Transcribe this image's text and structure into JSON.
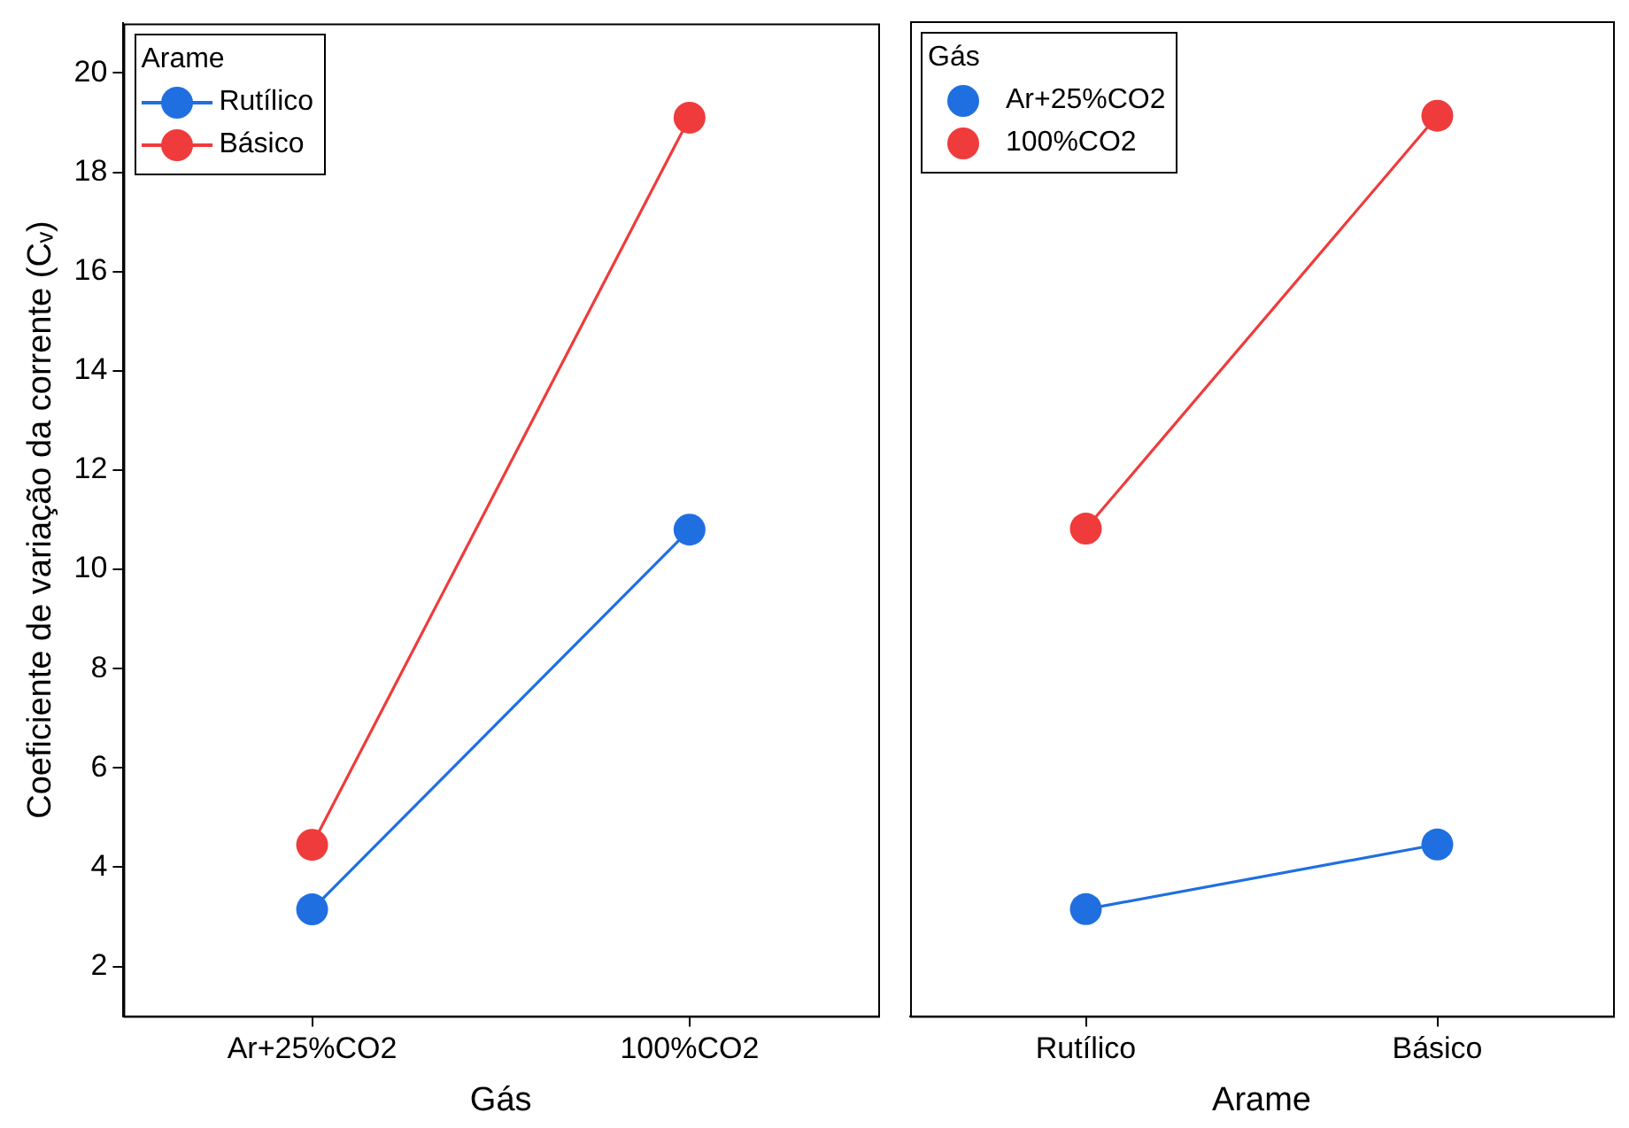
{
  "chart_data": [
    {
      "type": "line",
      "xlabel": "Gás",
      "ylabel": "Coeficiente de variação da corrente (Cᵥ)",
      "legend_title": "Arame",
      "categories": [
        "Ar+25%CO2",
        "100%CO2"
      ],
      "series": [
        {
          "name": "Rutílico",
          "color": "#1f6fe0",
          "values": [
            3.15,
            10.8
          ]
        },
        {
          "name": "Básico",
          "color": "#ef3b3b",
          "values": [
            4.45,
            19.1
          ]
        }
      ],
      "ylim": [
        1,
        21
      ],
      "yticks": [
        2,
        4,
        6,
        8,
        10,
        12,
        14,
        16,
        18,
        20
      ],
      "grid": false,
      "legend": "top left",
      "marker": "circle"
    },
    {
      "type": "line",
      "xlabel": "Arame",
      "legend_title": "Gás",
      "categories": [
        "Rutílico",
        "Básico"
      ],
      "series": [
        {
          "name": "Ar+25%CO2",
          "color": "#1f6fe0",
          "values": [
            3.15,
            4.45
          ]
        },
        {
          "name": "100%CO2",
          "color": "#ef3b3b",
          "values": [
            10.8,
            19.1
          ]
        }
      ],
      "ylim": [
        1,
        21
      ],
      "yticks": [
        2,
        4,
        6,
        8,
        10,
        12,
        14,
        16,
        18,
        20
      ],
      "grid": false,
      "legend": "top left",
      "marker": "circle",
      "tick_labels": "x"
    }
  ]
}
